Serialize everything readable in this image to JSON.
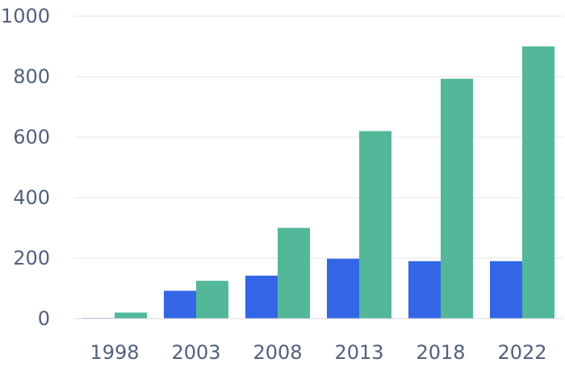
{
  "chart_data": {
    "type": "bar",
    "title": "",
    "xlabel": "",
    "ylabel": "",
    "categories": [
      "1998",
      "2003",
      "2008",
      "2013",
      "2018",
      "2022"
    ],
    "series": [
      {
        "color": "#3366e6",
        "values": [
          2,
          92,
          142,
          198,
          190,
          190
        ]
      },
      {
        "color": "#52b899",
        "values": [
          20,
          125,
          300,
          620,
          793,
          900
        ]
      }
    ],
    "ylim": [
      0,
      1000
    ],
    "yticks": [
      0,
      200,
      400,
      600,
      800,
      1000
    ],
    "grid": true,
    "legend": "none"
  }
}
